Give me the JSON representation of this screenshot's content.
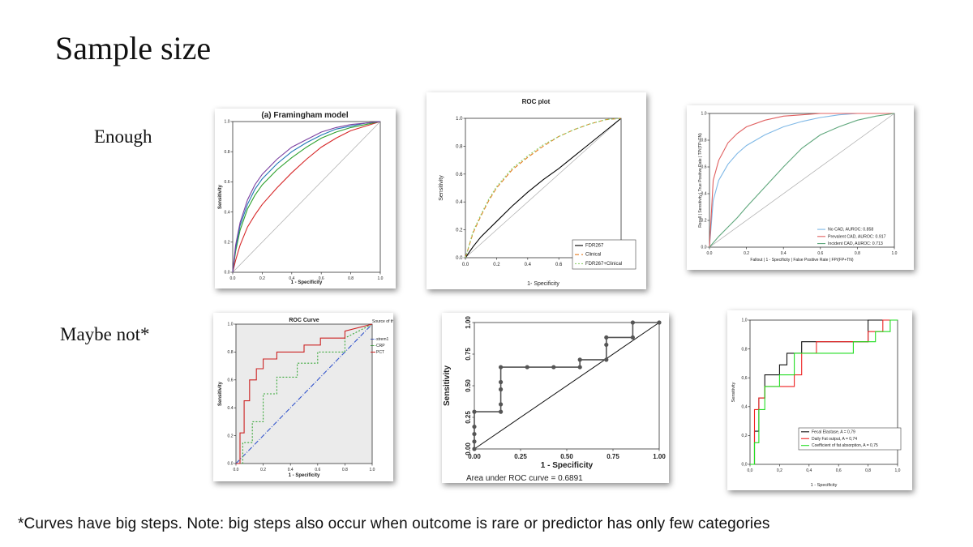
{
  "slide": {
    "title": "Sample size",
    "row_labels": [
      "Enough",
      "Maybe not*"
    ],
    "footnote": "*Curves have big steps. Note: big steps also occur when outcome is rare or predictor has only few categories"
  },
  "chart_data": [
    {
      "id": "c1",
      "type": "line",
      "title": "(a) Framingham model",
      "xlabel": "1 - Specificity",
      "ylabel": "Sensitivity",
      "xlim": [
        0,
        1
      ],
      "ylim": [
        0,
        1
      ],
      "xticks": [
        "0.0",
        "0.2",
        "0.4",
        "0.6",
        "0.8",
        "1.0"
      ],
      "yticks": [
        "0.0",
        "0.2",
        "0.4",
        "0.6",
        "0.8",
        "1.0"
      ],
      "reference_line": true,
      "series": [
        {
          "color": "#d62728",
          "x": [
            0,
            0.02,
            0.05,
            0.1,
            0.15,
            0.2,
            0.3,
            0.4,
            0.5,
            0.6,
            0.7,
            0.8,
            0.9,
            1
          ],
          "y": [
            0,
            0.08,
            0.18,
            0.3,
            0.38,
            0.45,
            0.56,
            0.66,
            0.75,
            0.83,
            0.89,
            0.94,
            0.97,
            1
          ]
        },
        {
          "color": "#2ca02c",
          "x": [
            0,
            0.02,
            0.05,
            0.1,
            0.15,
            0.2,
            0.3,
            0.4,
            0.5,
            0.6,
            0.7,
            0.8,
            0.9,
            1
          ],
          "y": [
            0,
            0.14,
            0.28,
            0.42,
            0.51,
            0.58,
            0.68,
            0.76,
            0.83,
            0.89,
            0.93,
            0.96,
            0.98,
            1
          ]
        },
        {
          "color": "#1f77b4",
          "x": [
            0,
            0.02,
            0.05,
            0.1,
            0.15,
            0.2,
            0.3,
            0.4,
            0.5,
            0.6,
            0.7,
            0.8,
            0.9,
            1
          ],
          "y": [
            0,
            0.16,
            0.31,
            0.45,
            0.55,
            0.62,
            0.72,
            0.8,
            0.86,
            0.91,
            0.95,
            0.97,
            0.99,
            1
          ]
        },
        {
          "color": "#7b3fa0",
          "x": [
            0,
            0.02,
            0.05,
            0.1,
            0.15,
            0.2,
            0.3,
            0.4,
            0.5,
            0.6,
            0.7,
            0.8,
            0.9,
            1
          ],
          "y": [
            0,
            0.18,
            0.33,
            0.48,
            0.58,
            0.65,
            0.75,
            0.83,
            0.88,
            0.93,
            0.96,
            0.98,
            0.99,
            1
          ]
        }
      ]
    },
    {
      "id": "c2",
      "type": "line",
      "title": "ROC plot",
      "xlabel": "1- Specificity",
      "ylabel": "Sensitivity",
      "xlim": [
        0,
        1
      ],
      "ylim": [
        0,
        1
      ],
      "xticks": [
        "0.0",
        "0.2",
        "0.4",
        "0.6",
        "0.8",
        "1.0"
      ],
      "yticks": [
        "0.0",
        "0.2",
        "0.4",
        "0.6",
        "0.8",
        "1.0"
      ],
      "reference_line": true,
      "legend": {
        "position": "bottom-right",
        "entries": [
          "FDR267",
          "Clinical",
          "FDR267+Clinical"
        ]
      },
      "series": [
        {
          "name": "FDR267",
          "color": "#000000",
          "dash": "",
          "x": [
            0,
            0.05,
            0.1,
            0.2,
            0.3,
            0.4,
            0.5,
            0.6,
            0.7,
            0.8,
            0.9,
            1
          ],
          "y": [
            0,
            0.08,
            0.15,
            0.26,
            0.37,
            0.47,
            0.56,
            0.64,
            0.73,
            0.82,
            0.91,
            1
          ]
        },
        {
          "name": "Clinical",
          "color": "#e67e22",
          "dash": "5,3",
          "x": [
            0,
            0.05,
            0.1,
            0.15,
            0.2,
            0.3,
            0.4,
            0.5,
            0.6,
            0.7,
            0.8,
            0.9,
            1
          ],
          "y": [
            0,
            0.18,
            0.3,
            0.41,
            0.5,
            0.63,
            0.72,
            0.8,
            0.87,
            0.92,
            0.96,
            0.99,
            1
          ]
        },
        {
          "name": "FDR267+Clinical",
          "color": "#8fd16b",
          "dash": "2,2",
          "x": [
            0,
            0.05,
            0.1,
            0.15,
            0.2,
            0.3,
            0.4,
            0.5,
            0.6,
            0.7,
            0.8,
            0.9,
            1
          ],
          "y": [
            0,
            0.19,
            0.31,
            0.42,
            0.51,
            0.64,
            0.73,
            0.81,
            0.87,
            0.92,
            0.96,
            0.99,
            1
          ]
        }
      ]
    },
    {
      "id": "c3",
      "type": "line",
      "xlabel": "Fallout | 1 - Specificity | False Positive Rate | FP/(FP+TN)",
      "ylabel": "Recall | Sensitivity | True Positive Rate | TP/(TP+FN)",
      "xlim": [
        0,
        1
      ],
      "ylim": [
        0,
        1
      ],
      "xticks": [
        "0.0",
        "0.2",
        "0.4",
        "0.6",
        "0.8",
        "1.0"
      ],
      "yticks": [
        "0.0",
        "0.2",
        "0.4",
        "0.6",
        "0.8",
        "1.0"
      ],
      "reference_line": true,
      "legend": {
        "position": "bottom-right",
        "entries": [
          "No CAD, AUROC: 0.858",
          "Prevalent CAD, AUROC: 0.917",
          "Incident CAD, AUROC: 0.713"
        ]
      },
      "series": [
        {
          "name": "No CAD, AUROC: 0.858",
          "color": "#7fb8e6",
          "x": [
            0,
            0.02,
            0.05,
            0.1,
            0.15,
            0.2,
            0.3,
            0.4,
            0.5,
            0.6,
            0.7,
            0.8,
            0.9,
            1
          ],
          "y": [
            0,
            0.35,
            0.5,
            0.62,
            0.7,
            0.76,
            0.84,
            0.9,
            0.94,
            0.97,
            0.99,
            1,
            1,
            1
          ]
        },
        {
          "name": "Prevalent CAD, AUROC: 0.917",
          "color": "#e06060",
          "x": [
            0,
            0.02,
            0.05,
            0.1,
            0.15,
            0.2,
            0.3,
            0.4,
            0.5,
            0.6,
            0.8,
            1
          ],
          "y": [
            0,
            0.5,
            0.65,
            0.78,
            0.85,
            0.9,
            0.95,
            0.98,
            0.99,
            1,
            1,
            1
          ]
        },
        {
          "name": "Incident CAD, AUROC: 0.713",
          "color": "#5fa77c",
          "x": [
            0,
            0.05,
            0.1,
            0.15,
            0.2,
            0.3,
            0.4,
            0.5,
            0.6,
            0.7,
            0.8,
            0.9,
            1
          ],
          "y": [
            0,
            0.08,
            0.15,
            0.22,
            0.3,
            0.45,
            0.6,
            0.74,
            0.84,
            0.9,
            0.95,
            0.98,
            1
          ]
        }
      ]
    },
    {
      "id": "c4",
      "type": "line",
      "title": "ROC Curve",
      "xlabel": "1 - Specificity",
      "ylabel": "Sensitivity",
      "xlim": [
        0,
        1
      ],
      "ylim": [
        0,
        1
      ],
      "xticks": [
        "0.0",
        "0.2",
        "0.4",
        "0.6",
        "0.8",
        "1.0"
      ],
      "yticks": [
        "0.0",
        "0.2",
        "0.4",
        "0.6",
        "0.8",
        "1.0"
      ],
      "legend": {
        "position": "right",
        "title": "Source of the Curve",
        "entries": [
          "strem1",
          "CRP",
          "PCT"
        ]
      },
      "series": [
        {
          "name": "strem1",
          "color": "#3355cc",
          "dash": "6,2,1,2",
          "x": [
            0,
            1
          ],
          "y": [
            0,
            1
          ]
        },
        {
          "name": "CRP",
          "color": "#3aa83a",
          "dash": "2,2",
          "x": [
            0,
            0.05,
            0.05,
            0.12,
            0.12,
            0.2,
            0.2,
            0.3,
            0.3,
            0.45,
            0.45,
            0.6,
            0.6,
            0.8,
            0.8,
            1
          ],
          "y": [
            0,
            0,
            0.15,
            0.15,
            0.3,
            0.3,
            0.5,
            0.5,
            0.62,
            0.62,
            0.72,
            0.72,
            0.8,
            0.8,
            0.9,
            1
          ]
        },
        {
          "name": "PCT",
          "color": "#cc2222",
          "dash": "",
          "x": [
            0,
            0.03,
            0.03,
            0.06,
            0.06,
            0.1,
            0.1,
            0.15,
            0.15,
            0.2,
            0.2,
            0.3,
            0.3,
            0.5,
            0.5,
            0.62,
            0.62,
            0.8,
            0.8,
            1
          ],
          "y": [
            0,
            0,
            0.22,
            0.22,
            0.45,
            0.45,
            0.6,
            0.6,
            0.68,
            0.68,
            0.75,
            0.75,
            0.8,
            0.8,
            0.85,
            0.85,
            0.9,
            0.9,
            0.95,
            1
          ]
        }
      ]
    },
    {
      "id": "c5",
      "type": "line",
      "xlabel": "1 - Specificity",
      "ylabel": "Sensitivity",
      "xlim": [
        0,
        1
      ],
      "ylim": [
        0,
        1
      ],
      "xticks": [
        "0.00",
        "0.25",
        "0.50",
        "0.75",
        "1.00"
      ],
      "yticks": [
        "0.00",
        "0.25",
        "0.50",
        "0.75",
        "1.00"
      ],
      "reference_line": true,
      "annotation": "Area under ROC curve = 0.6891",
      "series": [
        {
          "color": "#555555",
          "markers": true,
          "x": [
            0,
            0,
            0,
            0,
            0,
            0.143,
            0.143,
            0.143,
            0.143,
            0.143,
            0.286,
            0.429,
            0.571,
            0.571,
            0.714,
            0.714,
            0.714,
            0.857,
            0.857,
            1
          ],
          "y": [
            0,
            0.059,
            0.118,
            0.176,
            0.294,
            0.294,
            0.353,
            0.471,
            0.529,
            0.647,
            0.647,
            0.647,
            0.647,
            0.706,
            0.706,
            0.824,
            0.882,
            0.882,
            1,
            1
          ]
        }
      ]
    },
    {
      "id": "c6",
      "type": "line",
      "xlabel": "1 - Specificity",
      "ylabel": "Sensitivity",
      "xlim": [
        0,
        1
      ],
      "ylim": [
        0,
        1
      ],
      "xticks": [
        "0,0",
        "0,2",
        "0,4",
        "0,6",
        "0,8",
        "1,0"
      ],
      "yticks": [
        "0,0",
        "0,2",
        "0,4",
        "0,6",
        "0,8",
        "1,0"
      ],
      "legend": {
        "position": "bottom-right",
        "entries": [
          "Fecal Elastase, A = 0,79",
          "Daily Fat output, A = 0,74",
          "Coefficient of fat absorption, A = 0,75"
        ]
      },
      "series": [
        {
          "name": "Fecal Elastase, A = 0,79",
          "color": "#111111",
          "x": [
            0,
            0.03,
            0.03,
            0.06,
            0.06,
            0.1,
            0.1,
            0.2,
            0.2,
            0.25,
            0.25,
            0.3,
            0.3,
            0.35,
            0.35,
            0.4,
            0.4,
            0.8,
            0.8,
            0.9,
            0.9,
            1
          ],
          "y": [
            0,
            0,
            0.23,
            0.23,
            0.46,
            0.46,
            0.62,
            0.62,
            0.69,
            0.69,
            0.77,
            0.77,
            0.77,
            0.77,
            0.85,
            0.85,
            0.85,
            0.85,
            1,
            1,
            1,
            1
          ]
        },
        {
          "name": "Daily Fat output, A = 0,74",
          "color": "#ee2222",
          "x": [
            0,
            0.03,
            0.03,
            0.06,
            0.06,
            0.1,
            0.1,
            0.3,
            0.3,
            0.35,
            0.35,
            0.45,
            0.45,
            0.8,
            0.8,
            0.9,
            0.9,
            1
          ],
          "y": [
            0,
            0,
            0.38,
            0.38,
            0.46,
            0.46,
            0.54,
            0.54,
            0.62,
            0.62,
            0.77,
            0.77,
            0.85,
            0.85,
            0.92,
            0.92,
            1,
            1
          ]
        },
        {
          "name": "Coefficient of fat absorption, A = 0,75",
          "color": "#22dd22",
          "x": [
            0,
            0.03,
            0.03,
            0.06,
            0.06,
            0.1,
            0.1,
            0.2,
            0.2,
            0.3,
            0.3,
            0.7,
            0.7,
            0.85,
            0.85,
            0.95,
            0.95,
            1
          ],
          "y": [
            0,
            0,
            0.15,
            0.15,
            0.38,
            0.38,
            0.54,
            0.54,
            0.62,
            0.62,
            0.77,
            0.77,
            0.85,
            0.85,
            0.92,
            0.92,
            1,
            1
          ]
        }
      ]
    }
  ]
}
